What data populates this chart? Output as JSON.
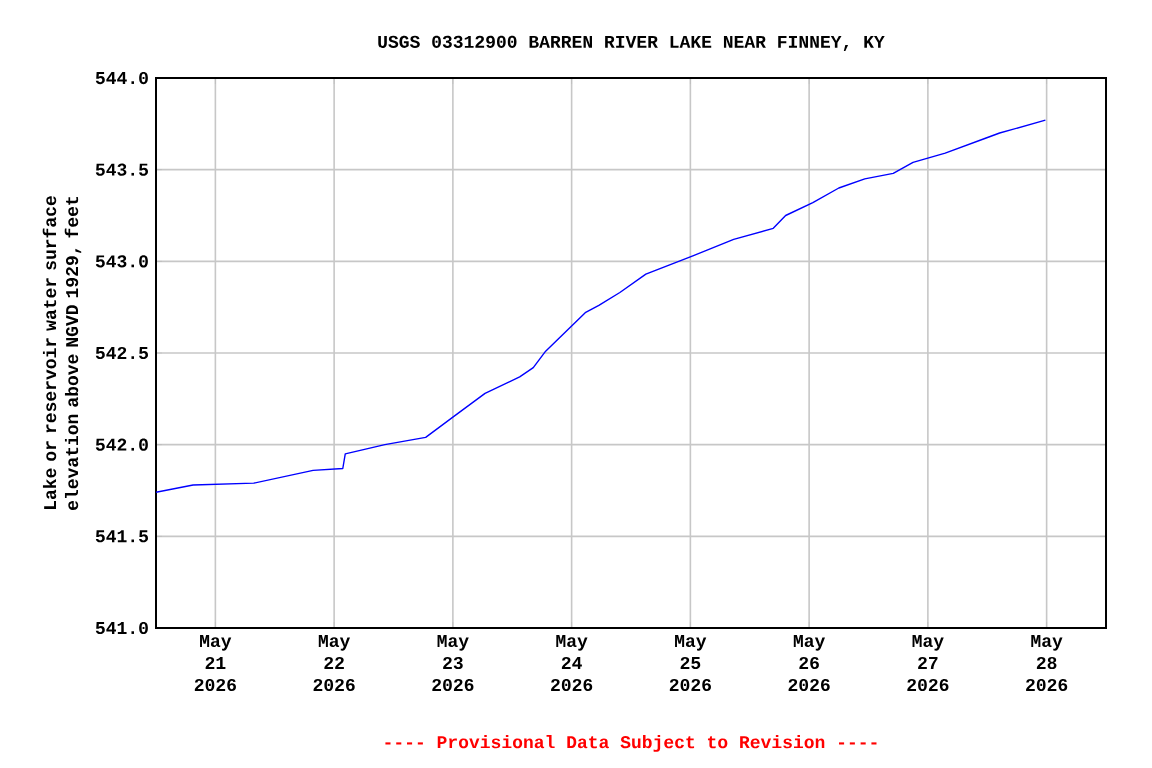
{
  "chart_data": {
    "type": "line",
    "title": "USGS 03312900 BARREN RIVER LAKE NEAR FINNEY, KY",
    "ylabel": "Lake or reservoir water surface elevation above NGVD 1929, feet",
    "annotations": [
      "---- Provisional Data Subject to Revision ----"
    ],
    "x": [
      "2026-05-20T12:00",
      "2026-05-20T19:30",
      "2026-05-21T07:45",
      "2026-05-21T19:45",
      "2026-05-22T01:45",
      "2026-05-22T02:15",
      "2026-05-22T10:15",
      "2026-05-22T18:30",
      "2026-05-23T00:00",
      "2026-05-23T06:30",
      "2026-05-23T13:30",
      "2026-05-23T16:15",
      "2026-05-23T18:45",
      "2026-05-24T02:45",
      "2026-05-24T05:30",
      "2026-05-24T09:45",
      "2026-05-24T15:00",
      "2026-05-25T00:30",
      "2026-05-25T08:45",
      "2026-05-25T16:45",
      "2026-05-25T19:15",
      "2026-05-26T00:45",
      "2026-05-26T06:00",
      "2026-05-26T11:15",
      "2026-05-26T17:00",
      "2026-05-26T21:00",
      "2026-05-27T03:30",
      "2026-05-27T11:30",
      "2026-05-27T14:30",
      "2026-05-27T23:45"
    ],
    "series": [
      {
        "color": "#0000ff",
        "values": [
          541.74,
          541.78,
          541.79,
          541.86,
          541.87,
          541.95,
          542.0,
          542.04,
          542.15,
          542.28,
          542.37,
          542.42,
          542.51,
          542.72,
          542.76,
          542.83,
          542.93,
          543.03,
          543.12,
          543.18,
          543.25,
          543.32,
          543.4,
          543.45,
          543.48,
          543.54,
          543.59,
          543.67,
          543.7,
          543.77
        ]
      }
    ],
    "xlim": [
      "2026-05-20T12:00",
      "2026-05-28T12:00"
    ],
    "xticks": [
      {
        "value": "2026-05-21",
        "label": "May 21 2026"
      },
      {
        "value": "2026-05-22",
        "label": "May 22 2026"
      },
      {
        "value": "2026-05-23",
        "label": "May 23 2026"
      },
      {
        "value": "2026-05-24",
        "label": "May 24 2026"
      },
      {
        "value": "2026-05-25",
        "label": "May 25 2026"
      },
      {
        "value": "2026-05-26",
        "label": "May 26 2026"
      },
      {
        "value": "2026-05-27",
        "label": "May 27 2026"
      },
      {
        "value": "2026-05-28",
        "label": "May 28 2026"
      }
    ],
    "ylim": [
      541.0,
      544.0
    ],
    "yticks": [
      {
        "value": 541.0,
        "label": "541.0"
      },
      {
        "value": 541.5,
        "label": "541.5"
      },
      {
        "value": 542.0,
        "label": "542.0"
      },
      {
        "value": 542.5,
        "label": "542.5"
      },
      {
        "value": 543.0,
        "label": "543.0"
      },
      {
        "value": 543.5,
        "label": "543.5"
      },
      {
        "value": 544.0,
        "label": "544.0"
      }
    ],
    "grid": true,
    "marker": "none",
    "line_style": "solid"
  }
}
